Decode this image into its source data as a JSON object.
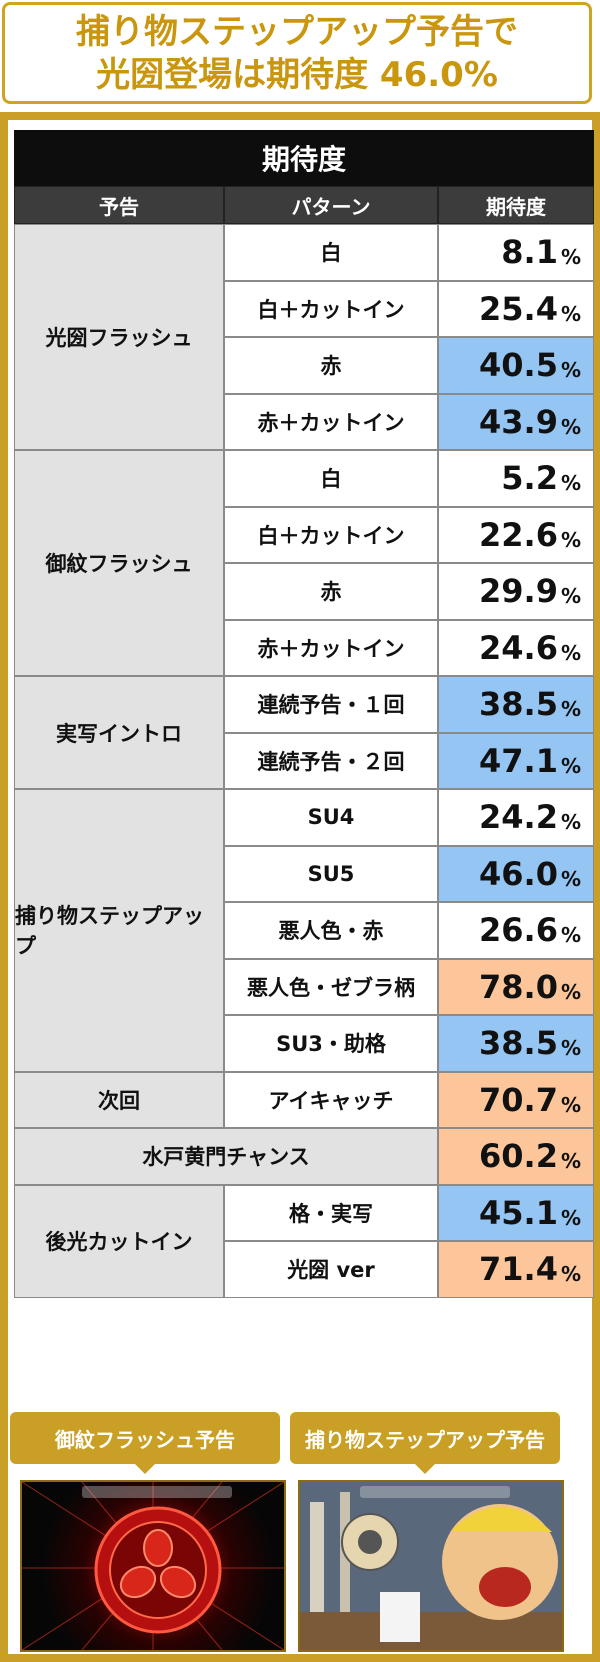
{
  "header": {
    "line1": "捕り物ステップアップ予告で",
    "line2": "光圀登場は期待度 46.0%"
  },
  "table": {
    "title": "期待度",
    "headers": [
      "予告",
      "パターン",
      "期待度"
    ],
    "groups": [
      {
        "name": "光圀フラッシュ",
        "rows": [
          {
            "pattern": "白",
            "value": "8.1",
            "hl": "none"
          },
          {
            "pattern": "白＋カットイン",
            "value": "25.4",
            "hl": "none"
          },
          {
            "pattern": "赤",
            "value": "40.5",
            "hl": "blue"
          },
          {
            "pattern": "赤＋カットイン",
            "value": "43.9",
            "hl": "blue"
          }
        ]
      },
      {
        "name": "御紋フラッシュ",
        "rows": [
          {
            "pattern": "白",
            "value": "5.2",
            "hl": "none"
          },
          {
            "pattern": "白＋カットイン",
            "value": "22.6",
            "hl": "none"
          },
          {
            "pattern": "赤",
            "value": "29.9",
            "hl": "none"
          },
          {
            "pattern": "赤＋カットイン",
            "value": "24.6",
            "hl": "none"
          }
        ]
      },
      {
        "name": "実写イントロ",
        "rows": [
          {
            "pattern": "連続予告・１回",
            "value": "38.5",
            "hl": "blue"
          },
          {
            "pattern": "連続予告・２回",
            "value": "47.1",
            "hl": "blue"
          }
        ]
      },
      {
        "name": "捕り物ステップアップ",
        "rows": [
          {
            "pattern": "SU4",
            "value": "24.2",
            "hl": "none"
          },
          {
            "pattern": "SU5",
            "value": "46.0",
            "hl": "blue"
          },
          {
            "pattern": "悪人色・赤",
            "value": "26.6",
            "hl": "none"
          },
          {
            "pattern": "悪人色・ゼブラ柄",
            "value": "78.0",
            "hl": "orange"
          },
          {
            "pattern": "SU3・助格",
            "value": "38.5",
            "hl": "blue"
          }
        ]
      },
      {
        "name": "次回",
        "rows": [
          {
            "pattern": "アイキャッチ",
            "value": "70.7",
            "hl": "orange"
          }
        ]
      },
      {
        "name": "水戸黄門チャンス",
        "span": true,
        "rows": [
          {
            "pattern": "",
            "value": "60.2",
            "hl": "orange"
          }
        ]
      },
      {
        "name": "後光カットイン",
        "rows": [
          {
            "pattern": "格・実写",
            "value": "45.1",
            "hl": "blue"
          },
          {
            "pattern": "光圀 ver",
            "value": "71.4",
            "hl": "orange"
          }
        ]
      }
    ],
    "unit": "%"
  },
  "captions": [
    "御紋フラッシュ予告",
    "捕り物ステップアップ予告"
  ],
  "colors": {
    "gold": "#c9a025",
    "blue": "#94c5f3",
    "orange": "#fcc69a"
  }
}
